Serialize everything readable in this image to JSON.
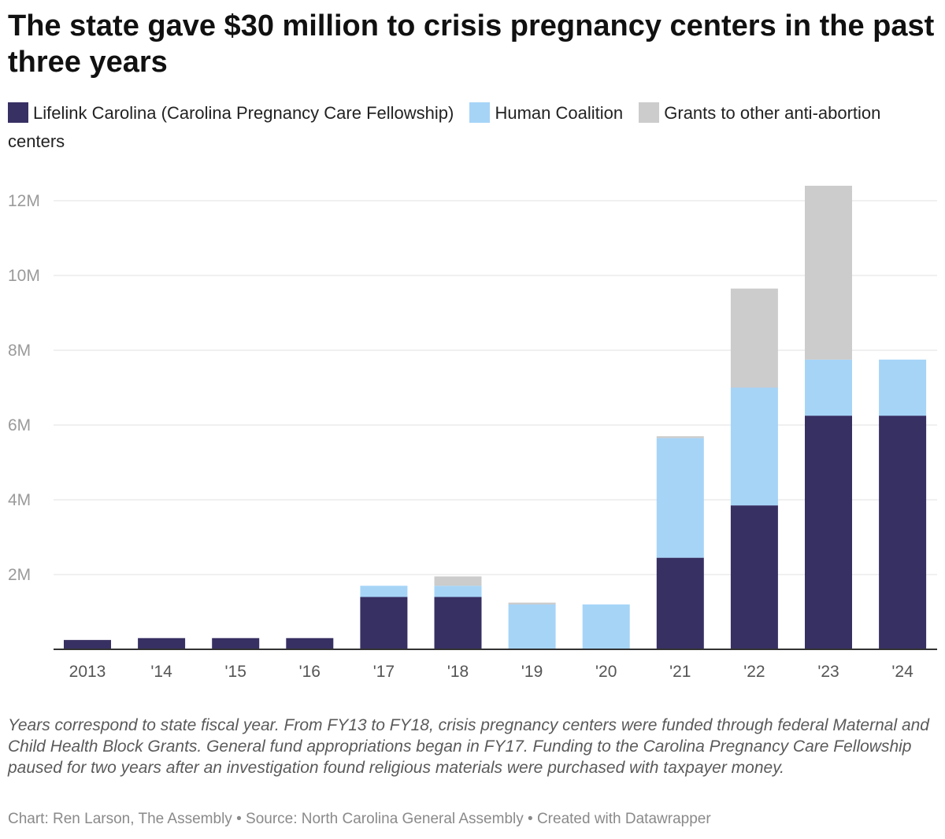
{
  "header": {
    "title": "The state gave $30 million to crisis pregnancy centers in the past three years"
  },
  "chart_data": {
    "type": "bar",
    "stacked": true,
    "title": "The state gave $30 million to crisis pregnancy centers in the past three years",
    "xlabel": "",
    "ylabel": "",
    "categories": [
      "2013",
      "'14",
      "'15",
      "'16",
      "'17",
      "'18",
      "'19",
      "'20",
      "'21",
      "'22",
      "'23",
      "'24"
    ],
    "series": [
      {
        "name": "Lifelink Carolina (Carolina Pregnancy Care Fellowship)",
        "color": "#373063",
        "values": [
          250000,
          300000,
          300000,
          300000,
          1400000,
          1400000,
          0,
          0,
          2450000,
          3850000,
          6250000,
          6250000
        ]
      },
      {
        "name": "Human Coalition",
        "color": "#a6d4f7",
        "values": [
          0,
          0,
          0,
          0,
          300000,
          300000,
          1200000,
          1200000,
          3200000,
          3150000,
          1500000,
          1500000
        ]
      },
      {
        "name": "Grants to other anti-abortion centers",
        "color": "#cccccc",
        "values": [
          0,
          0,
          0,
          0,
          0,
          250000,
          50000,
          0,
          50000,
          2650000,
          4650000,
          0
        ]
      }
    ],
    "ylim": [
      0,
      12400000
    ],
    "yticks": [
      {
        "value": 2000000,
        "label": "2M"
      },
      {
        "value": 4000000,
        "label": "4M"
      },
      {
        "value": 6000000,
        "label": "6M"
      },
      {
        "value": 8000000,
        "label": "8M"
      },
      {
        "value": 10000000,
        "label": "10M"
      },
      {
        "value": 12000000,
        "label": "12M"
      }
    ],
    "grid": true,
    "legend_position": "top"
  },
  "notes": "Years correspond to state fiscal year. From FY13 to FY18, crisis pregnancy centers were funded through federal Maternal and Child Health Block Grants. General fund appropriations began in FY17. Funding to the Carolina Pregnancy Care Fellowship paused for two years after an investigation found religious materials were purchased with taxpayer money.",
  "footer": {
    "credit": "Chart: Ren Larson, The Assembly",
    "separator": " • ",
    "source": "Source: North Carolina General Assembly",
    "created": "Created with Datawrapper"
  }
}
